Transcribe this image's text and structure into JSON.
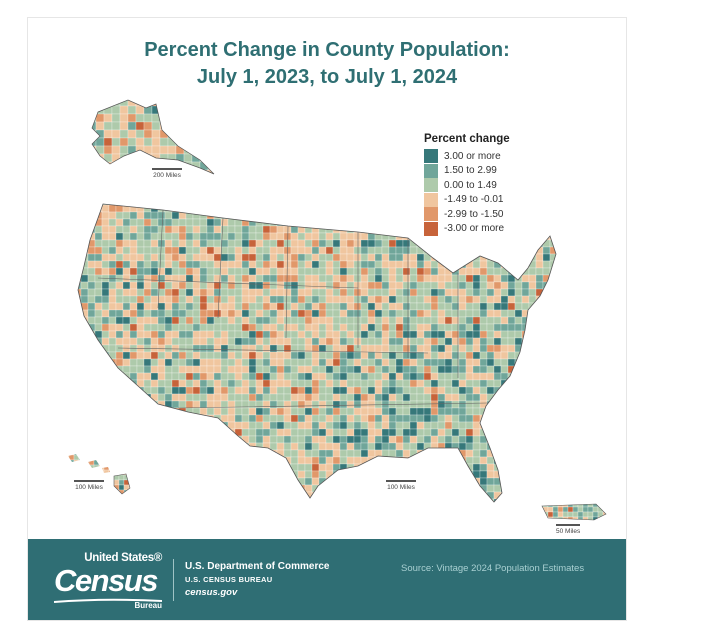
{
  "title": {
    "line1": "Percent Change in County Population:",
    "line2": "July 1, 2023, to July 1, 2024"
  },
  "legend": {
    "title": "Percent change",
    "items": [
      {
        "label": "3.00 or more",
        "color": "#36787a"
      },
      {
        "label": "1.50 to 2.99",
        "color": "#70a69a"
      },
      {
        "label": "0.00 to 1.49",
        "color": "#aecaab"
      },
      {
        "label": "-1.49 to -0.01",
        "color": "#f0c69f"
      },
      {
        "label": "-2.99 to -1.50",
        "color": "#e1986a"
      },
      {
        "label": "-3.00 or more",
        "color": "#c7633a"
      }
    ]
  },
  "scales": {
    "alaska": "200 Miles",
    "hawaii": "100 Miles",
    "conus": "100 Miles",
    "puerto_rico": "50 Miles"
  },
  "footer": {
    "logo_top": "United States®",
    "logo_main": "Census",
    "logo_bottom": "Bureau",
    "dept_line1": "U.S. Department of Commerce",
    "dept_line2": "U.S. CENSUS BUREAU",
    "dept_line3": "census.gov",
    "source": "Source: Vintage 2024 Population Estimates",
    "background": "#2f6e74"
  }
}
